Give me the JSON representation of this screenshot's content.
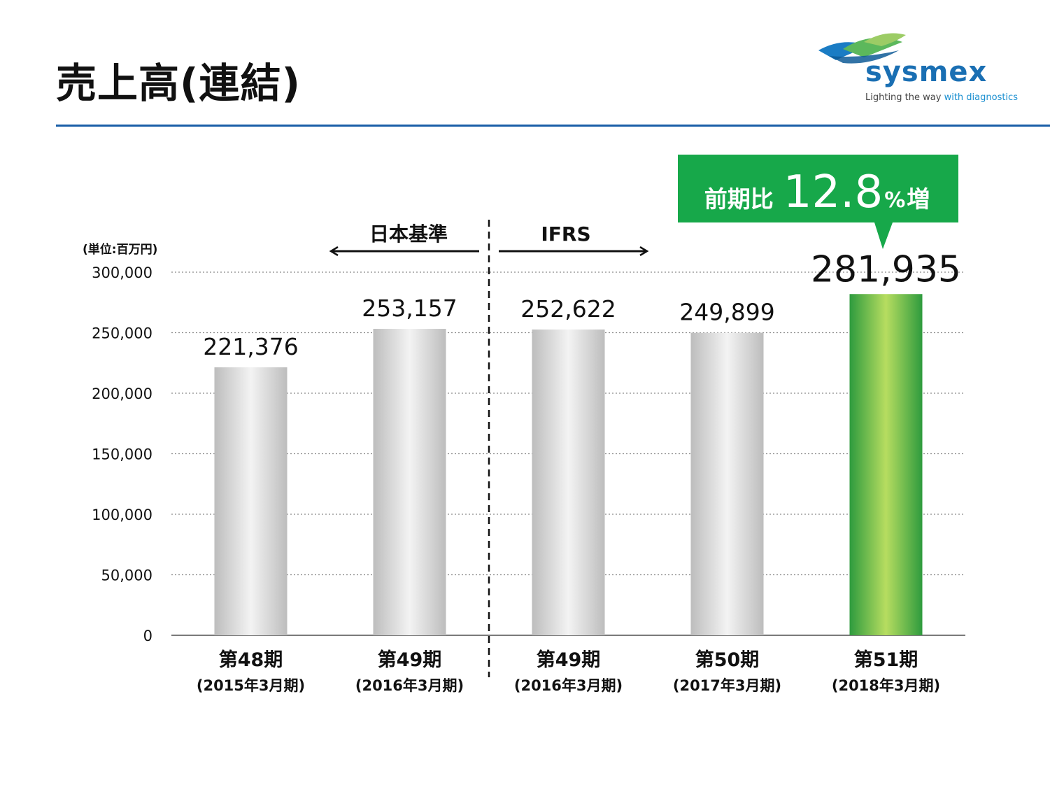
{
  "title": "売上高(連結)",
  "logo": {
    "word": "sysmex",
    "tagline_plain": "Lighting the way ",
    "tagline_accent": "with diagnostics"
  },
  "colors": {
    "title_rule": "#1a5ea8",
    "highlight_green": "#17a84a",
    "bar_gray": "#cfcfcf",
    "bar_green": "#7cc242"
  },
  "chart_data": {
    "type": "bar",
    "unit_label": "(単位:百万円)",
    "categories": [
      "第48期",
      "第49期",
      "第49期",
      "第50期",
      "第51期"
    ],
    "category_subs": [
      "(2015年3月期)",
      "(2016年3月期)",
      "(2016年3月期)",
      "(2017年3月期)",
      "(2018年3月期)"
    ],
    "values": [
      221376,
      253157,
      252622,
      249899,
      281935
    ],
    "value_labels": [
      "221,376",
      "253,157",
      "252,622",
      "249,899",
      "281,935"
    ],
    "highlight_index": 4,
    "ylim": [
      0,
      300000
    ],
    "yticks": [
      0,
      50000,
      100000,
      150000,
      200000,
      250000,
      300000
    ],
    "ytick_labels": [
      "0",
      "50,000",
      "100,000",
      "150,000",
      "200,000",
      "250,000",
      "300,000"
    ],
    "grid": true,
    "grid_style": "dotted",
    "standards": {
      "left_label": "日本基準",
      "right_label": "IFRS",
      "split_after_index": 1
    },
    "callout": {
      "prefix": "前期比",
      "value": "12.8",
      "unit": "%",
      "suffix": "増"
    }
  }
}
